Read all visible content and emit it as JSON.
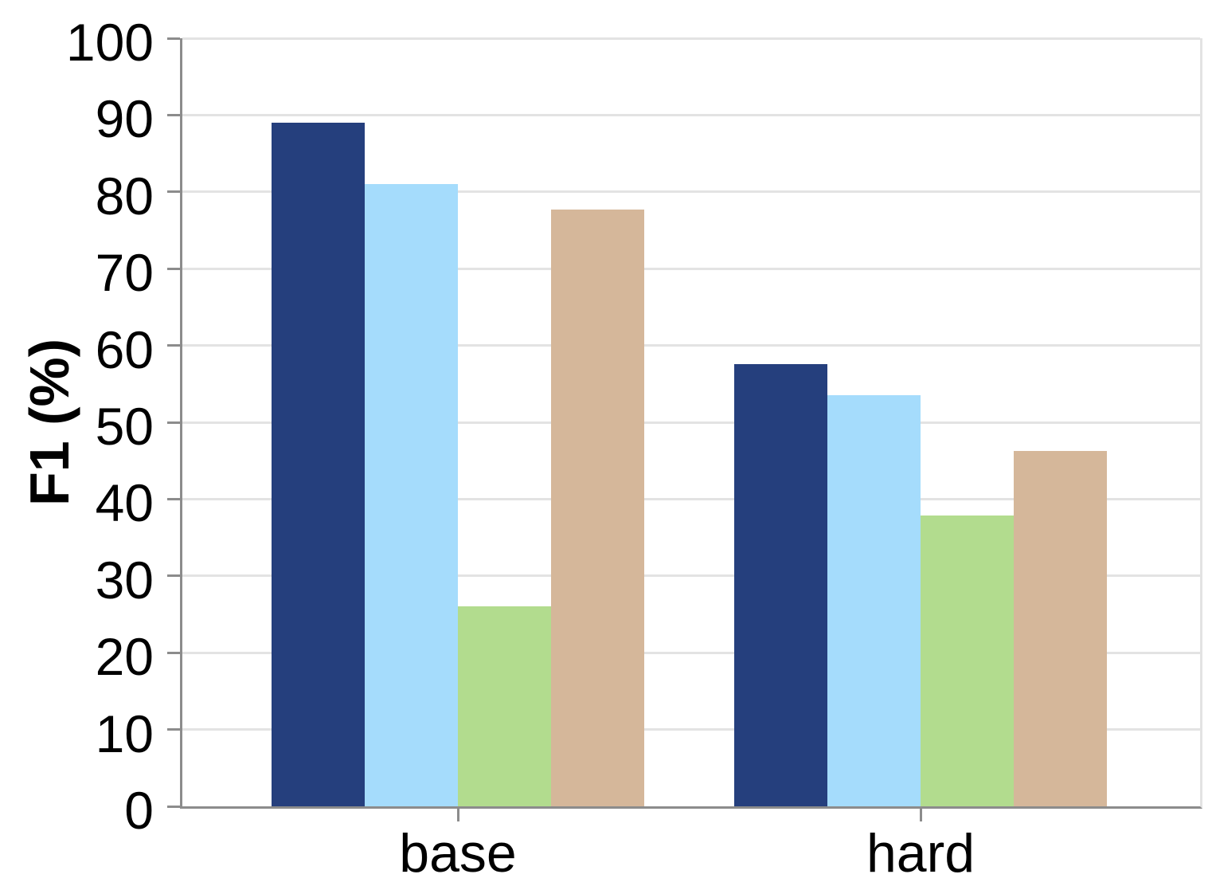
{
  "chart_data": {
    "type": "bar",
    "title": "",
    "xlabel": "",
    "ylabel": "F1 (%)",
    "categories": [
      "base",
      "hard"
    ],
    "series": [
      {
        "name": "navy",
        "color": "#253F7D",
        "values": [
          89.0,
          57.6
        ]
      },
      {
        "name": "light-blue",
        "color": "#A5DCFC",
        "values": [
          81.0,
          53.5
        ]
      },
      {
        "name": "green",
        "color": "#B2DC8E",
        "values": [
          26.0,
          37.9
        ]
      },
      {
        "name": "tan",
        "color": "#D5B79A",
        "values": [
          77.7,
          46.3
        ]
      }
    ],
    "ylim": [
      0,
      100
    ],
    "yticks": [
      0,
      10,
      20,
      30,
      40,
      50,
      60,
      70,
      80,
      90,
      100
    ],
    "grid": true,
    "legend": "none",
    "axis_color": "#8C8C8C",
    "grid_color": "#E3E3E3",
    "text_color": "#000000"
  }
}
